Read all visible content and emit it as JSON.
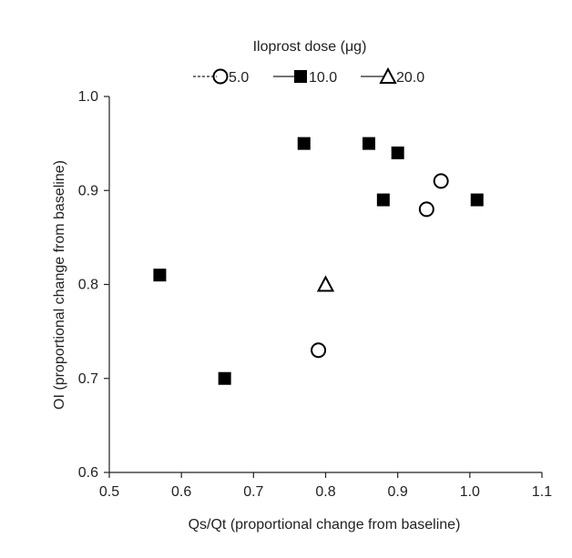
{
  "chart_data": {
    "type": "scatter",
    "title": "",
    "xlabel": "Qs/Qt (proportional change from baseline)",
    "ylabel": "OI (proportional change from baseline)",
    "xlim": [
      0.5,
      1.1
    ],
    "ylim": [
      0.6,
      1.0
    ],
    "xticks": [
      "0.5",
      "0.6",
      "0.7",
      "0.8",
      "0.9",
      "1.0",
      "1.1"
    ],
    "yticks": [
      "0.6",
      "0.7",
      "0.8",
      "0.9",
      "1.0"
    ],
    "legend": {
      "title": "Iloprost dose (μg)",
      "placement": "top-center",
      "entries": [
        {
          "label": "5.0",
          "marker": "circle",
          "line": "dashed"
        },
        {
          "label": "10.0",
          "marker": "square",
          "line": "solid"
        },
        {
          "label": "20.0",
          "marker": "triangle",
          "line": "solid"
        }
      ]
    },
    "series": [
      {
        "name": "5.0",
        "marker": "circle",
        "points": [
          [
            0.79,
            0.73
          ],
          [
            0.94,
            0.88
          ],
          [
            0.96,
            0.91
          ]
        ]
      },
      {
        "name": "10.0",
        "marker": "square",
        "points": [
          [
            0.57,
            0.81
          ],
          [
            0.66,
            0.7
          ],
          [
            0.77,
            0.95
          ],
          [
            0.86,
            0.95
          ],
          [
            0.88,
            0.89
          ],
          [
            0.9,
            0.94
          ],
          [
            1.01,
            0.89
          ]
        ]
      },
      {
        "name": "20.0",
        "marker": "triangle",
        "points": [
          [
            0.8,
            0.8
          ]
        ]
      }
    ]
  }
}
